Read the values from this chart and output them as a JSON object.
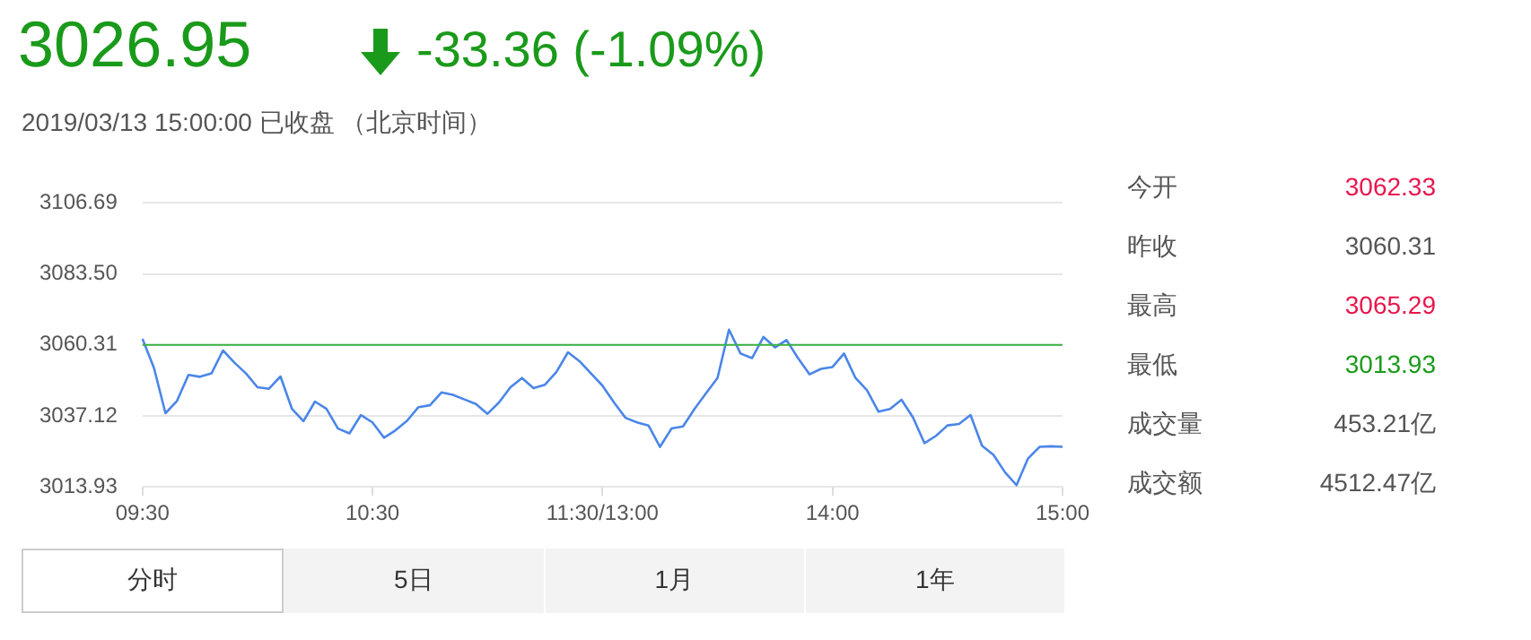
{
  "chart_data": {
    "type": "line",
    "title": "3026.95",
    "subtitle": "-33.36 (-1.09%)",
    "annotations": [
      "2019/03/13 15:00:00 已收盘 （北京时间）",
      "今开",
      "3062.33",
      "昨收",
      "3060.31",
      "最高",
      "3065.29",
      "最低",
      "3013.93",
      "成交量",
      "453.21亿",
      "成交额",
      "4512.47亿",
      "分时",
      "5日",
      "1月",
      "1年"
    ],
    "categories": [
      "09:30",
      null,
      null,
      null,
      null,
      null,
      null,
      null,
      null,
      null,
      null,
      null,
      null,
      null,
      null,
      null,
      null,
      null,
      null,
      null,
      "10:30",
      null,
      null,
      null,
      null,
      null,
      null,
      null,
      null,
      null,
      null,
      null,
      null,
      null,
      null,
      null,
      null,
      null,
      null,
      null,
      "11:30/13:00",
      null,
      null,
      null,
      null,
      null,
      null,
      null,
      null,
      null,
      null,
      null,
      null,
      null,
      null,
      null,
      null,
      null,
      null,
      null,
      "14:00",
      null,
      null,
      null,
      null,
      null,
      null,
      null,
      null,
      null,
      null,
      null,
      null,
      null,
      null,
      null,
      null,
      null,
      null,
      null,
      "15:00"
    ],
    "series": [
      {
        "color": "#4a86e8",
        "values": [
          3062.3,
          3052.8,
          3038.0,
          3042.0,
          3050.5,
          3049.9,
          3051.0,
          3058.5,
          3054.5,
          3051.0,
          3046.5,
          3046.0,
          3050.0,
          3039.4,
          3035.4,
          3041.8,
          3039.4,
          3033.0,
          3031.4,
          3037.4,
          3035.0,
          3030.0,
          3032.4,
          3035.5,
          3040.0,
          3040.6,
          3044.8,
          3044.0,
          3042.5,
          3041.0,
          3037.8,
          3041.5,
          3046.5,
          3049.5,
          3046.2,
          3047.3,
          3051.5,
          3057.9,
          3055.0,
          3051.0,
          3047.0,
          3041.5,
          3036.5,
          3035.0,
          3034.0,
          3027.0,
          3033.0,
          3033.7,
          3039.4,
          3044.5,
          3049.5,
          3065.3,
          3057.5,
          3056.0,
          3062.9,
          3059.5,
          3061.9,
          3056.0,
          3050.7,
          3052.5,
          3053.1,
          3057.5,
          3049.5,
          3045.5,
          3038.5,
          3039.4,
          3042.4,
          3036.6,
          3028.2,
          3030.6,
          3034.0,
          3034.5,
          3037.4,
          3027.4,
          3024.4,
          3018.7,
          3014.5,
          3023.2,
          3027.0,
          3027.2,
          3027.0
        ]
      }
    ],
    "ylim": [
      3013.93,
      3106.69
    ],
    "yticks": [
      {
        "value": 3013.93,
        "label": "3013.93"
      },
      {
        "value": 3037.12,
        "label": "3037.12"
      },
      {
        "value": 3060.31,
        "label": "3060.31"
      },
      {
        "value": 3083.5,
        "label": "3083.50"
      },
      {
        "value": 3106.69,
        "label": "3106.69"
      }
    ],
    "ref_lines": [
      {
        "axis": "y",
        "value": 3060.31,
        "color": "#3cb043"
      }
    ],
    "grid": "y",
    "legend": false,
    "marker": "none",
    "line_style": "solid"
  }
}
